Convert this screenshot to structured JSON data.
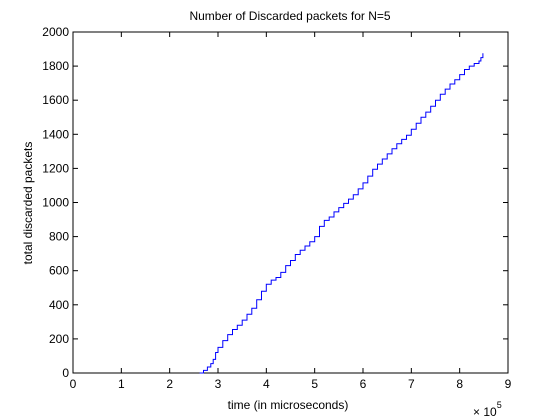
{
  "chart_data": {
    "type": "line",
    "title": "Number of Discarded packets for N=5",
    "xlabel": "time (in microseconds)",
    "ylabel": "total discarded packets",
    "x_exponent_label": "× 10",
    "x_exponent_power": "5",
    "xlim": [
      0,
      9
    ],
    "ylim": [
      0,
      2000
    ],
    "xticks": [
      0,
      1,
      2,
      3,
      4,
      5,
      6,
      7,
      8,
      9
    ],
    "yticks": [
      0,
      200,
      400,
      600,
      800,
      1000,
      1200,
      1400,
      1600,
      1800,
      2000
    ],
    "grid": false,
    "line_color": "#0000ff",
    "series": [
      {
        "x": [
          2.62,
          2.7,
          2.78,
          2.85,
          2.9,
          2.95,
          3.0,
          3.1,
          3.2,
          3.3,
          3.4,
          3.5,
          3.6,
          3.7,
          3.8,
          3.9,
          4.0,
          4.1,
          4.2,
          4.3,
          4.4,
          4.5,
          4.6,
          4.7,
          4.8,
          4.9,
          5.0,
          5.1,
          5.2,
          5.3,
          5.4,
          5.5,
          5.6,
          5.7,
          5.8,
          5.9,
          6.0,
          6.1,
          6.2,
          6.3,
          6.4,
          6.5,
          6.6,
          6.7,
          6.8,
          6.9,
          7.0,
          7.1,
          7.2,
          7.3,
          7.4,
          7.5,
          7.6,
          7.7,
          7.8,
          7.9,
          8.0,
          8.1,
          8.2,
          8.3,
          8.4,
          8.44,
          8.48
        ],
        "y": [
          0,
          15,
          35,
          55,
          80,
          120,
          150,
          190,
          225,
          255,
          280,
          310,
          345,
          380,
          430,
          480,
          520,
          545,
          560,
          590,
          630,
          660,
          695,
          720,
          745,
          770,
          800,
          860,
          895,
          915,
          945,
          970,
          995,
          1020,
          1045,
          1080,
          1115,
          1155,
          1195,
          1225,
          1255,
          1285,
          1315,
          1345,
          1370,
          1395,
          1430,
          1465,
          1500,
          1530,
          1565,
          1600,
          1635,
          1665,
          1695,
          1720,
          1750,
          1780,
          1800,
          1815,
          1830,
          1850,
          1875
        ]
      }
    ]
  }
}
